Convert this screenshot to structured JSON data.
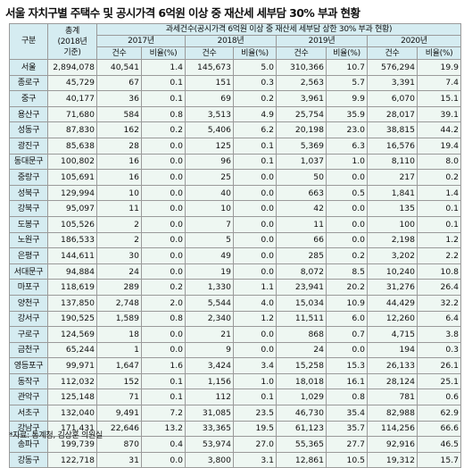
{
  "title": "서울 자치구별 주택수 및 공시가격 6억원 이상 중 재산세 세부담 30% 부과 현황",
  "header": {
    "district": "구분",
    "total": "총계\n(2018년\n기준)",
    "group": "과세건수(공시가격 6억원 이상 중 재산세 세부담 상한 30% 부과 현황)",
    "years": [
      "2017년",
      "2018년",
      "2019년",
      "2020년"
    ],
    "count": "건수",
    "ratio": "비율(%)"
  },
  "rows": [
    {
      "d": "서울",
      "t": "2,894,078",
      "v": [
        "40,541",
        "1.4",
        "145,673",
        "5.0",
        "310,366",
        "10.7",
        "576,294",
        "19.9"
      ]
    },
    {
      "d": "종로구",
      "t": "45,729",
      "v": [
        "67",
        "0.1",
        "151",
        "0.3",
        "2,563",
        "5.7",
        "3,391",
        "7.4"
      ]
    },
    {
      "d": "중구",
      "t": "40,177",
      "v": [
        "36",
        "0.1",
        "69",
        "0.2",
        "3,961",
        "9.9",
        "6,070",
        "15.1"
      ]
    },
    {
      "d": "용산구",
      "t": "71,680",
      "v": [
        "584",
        "0.8",
        "3,513",
        "4.9",
        "25,754",
        "35.9",
        "28,017",
        "39.1"
      ]
    },
    {
      "d": "성동구",
      "t": "87,830",
      "v": [
        "162",
        "0.2",
        "5,406",
        "6.2",
        "20,198",
        "23.0",
        "38,815",
        "44.2"
      ]
    },
    {
      "d": "광진구",
      "t": "85,638",
      "v": [
        "28",
        "0.0",
        "125",
        "0.1",
        "5,369",
        "6.3",
        "16,576",
        "19.4"
      ]
    },
    {
      "d": "동대문구",
      "t": "100,802",
      "v": [
        "16",
        "0.0",
        "96",
        "0.1",
        "1,037",
        "1.0",
        "8,110",
        "8.0"
      ]
    },
    {
      "d": "중랑구",
      "t": "105,691",
      "v": [
        "16",
        "0.0",
        "25",
        "0.0",
        "50",
        "0.0",
        "217",
        "0.2"
      ]
    },
    {
      "d": "성북구",
      "t": "129,994",
      "v": [
        "10",
        "0.0",
        "40",
        "0.0",
        "663",
        "0.5",
        "1,841",
        "1.4"
      ]
    },
    {
      "d": "강북구",
      "t": "95,097",
      "v": [
        "11",
        "0.0",
        "10",
        "0.0",
        "42",
        "0.0",
        "135",
        "0.1"
      ]
    },
    {
      "d": "도봉구",
      "t": "105,526",
      "v": [
        "2",
        "0.0",
        "7",
        "0.0",
        "11",
        "0.0",
        "100",
        "0.1"
      ]
    },
    {
      "d": "노원구",
      "t": "186,533",
      "v": [
        "2",
        "0.0",
        "5",
        "0.0",
        "66",
        "0.0",
        "2,198",
        "1.2"
      ]
    },
    {
      "d": "은평구",
      "t": "144,611",
      "v": [
        "30",
        "0.0",
        "49",
        "0.0",
        "285",
        "0.2",
        "3,202",
        "2.2"
      ]
    },
    {
      "d": "서대문구",
      "t": "94,884",
      "v": [
        "24",
        "0.0",
        "19",
        "0.0",
        "8,072",
        "8.5",
        "10,240",
        "10.8"
      ]
    },
    {
      "d": "마포구",
      "t": "118,619",
      "v": [
        "289",
        "0.2",
        "1,330",
        "1.1",
        "23,941",
        "20.2",
        "31,276",
        "26.4"
      ]
    },
    {
      "d": "양천구",
      "t": "137,850",
      "v": [
        "2,748",
        "2.0",
        "5,544",
        "4.0",
        "15,034",
        "10.9",
        "44,429",
        "32.2"
      ]
    },
    {
      "d": "강서구",
      "t": "190,525",
      "v": [
        "1,589",
        "0.8",
        "2,340",
        "1.2",
        "11,511",
        "6.0",
        "12,260",
        "6.4"
      ]
    },
    {
      "d": "구로구",
      "t": "124,569",
      "v": [
        "18",
        "0.0",
        "21",
        "0.0",
        "868",
        "0.7",
        "4,715",
        "3.8"
      ]
    },
    {
      "d": "금천구",
      "t": "65,244",
      "v": [
        "1",
        "0.0",
        "9",
        "0.0",
        "24",
        "0.0",
        "194",
        "0.3"
      ]
    },
    {
      "d": "영등포구",
      "t": "99,971",
      "v": [
        "1,647",
        "1.6",
        "3,424",
        "3.4",
        "15,258",
        "15.3",
        "26,133",
        "26.1"
      ]
    },
    {
      "d": "동작구",
      "t": "112,032",
      "v": [
        "152",
        "0.1",
        "1,156",
        "1.0",
        "18,018",
        "16.1",
        "28,124",
        "25.1"
      ]
    },
    {
      "d": "관악구",
      "t": "125,148",
      "v": [
        "71",
        "0.1",
        "112",
        "0.1",
        "1,029",
        "0.8",
        "781",
        "0.6"
      ]
    },
    {
      "d": "서초구",
      "t": "132,040",
      "v": [
        "9,491",
        "7.2",
        "31,085",
        "23.5",
        "46,730",
        "35.4",
        "82,988",
        "62.9"
      ]
    },
    {
      "d": "강남구",
      "t": "171,431",
      "v": [
        "22,646",
        "13.2",
        "33,365",
        "19.5",
        "61,123",
        "35.7",
        "114,256",
        "66.6"
      ]
    },
    {
      "d": "송파구",
      "t": "199,739",
      "v": [
        "870",
        "0.4",
        "53,974",
        "27.0",
        "55,365",
        "27.7",
        "92,916",
        "46.5"
      ]
    },
    {
      "d": "강동구",
      "t": "122,718",
      "v": [
        "31",
        "0.0",
        "3,800",
        "3.1",
        "12,861",
        "10.5",
        "19,312",
        "15.7"
      ]
    }
  ],
  "source": "*자료: 통계청, 김상훈 의원실"
}
